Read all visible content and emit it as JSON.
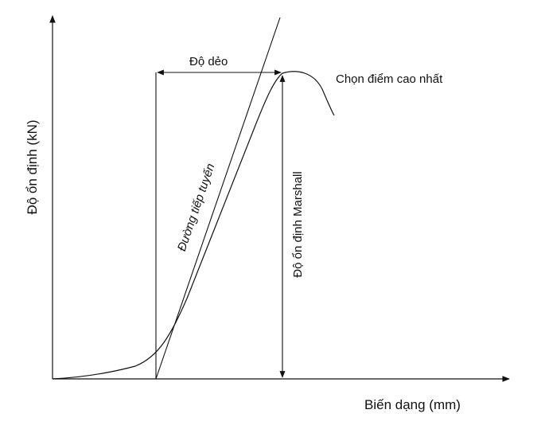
{
  "diagram": {
    "y_axis_label": "Độ ổn định (kN)",
    "x_axis_label": "Biến dạng (mm)",
    "flow_label": "Độ dẻo",
    "peak_label": "Chọn điểm cao nhất",
    "tangent_label": "Đường tiếp tuyến",
    "stability_label": "Độ ổn định Marshall"
  }
}
